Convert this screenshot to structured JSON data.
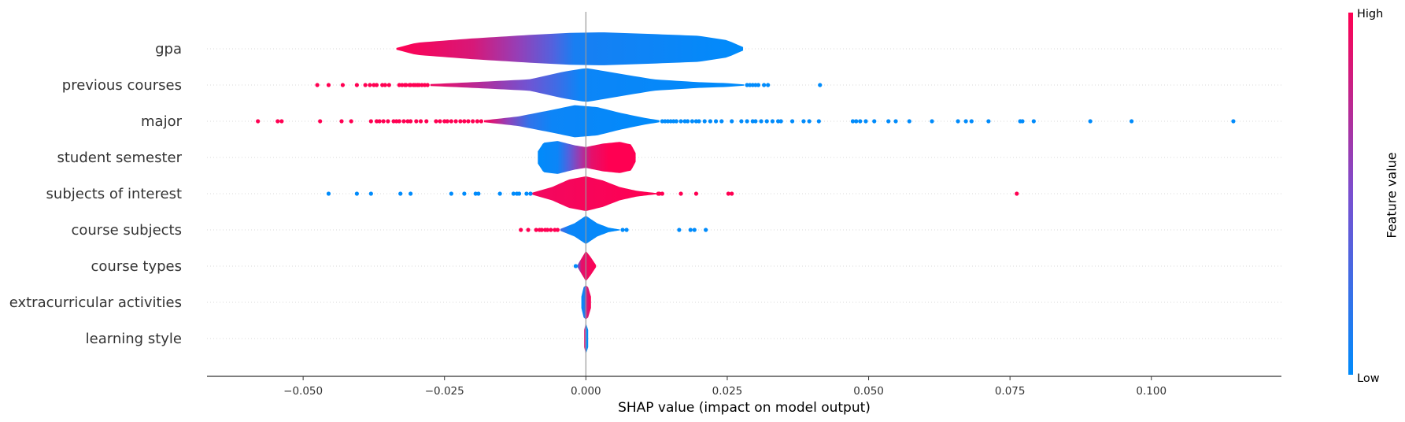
{
  "chart_data": {
    "type": "violin",
    "xlabel": "SHAP value (impact on model output)",
    "xlim": [
      -0.067,
      0.123
    ],
    "xticks": [
      -0.05,
      -0.025,
      0.0,
      0.025,
      0.05,
      0.075,
      0.1
    ],
    "xtick_labels": [
      "−0.050",
      "−0.025",
      "0.000",
      "0.025",
      "0.050",
      "0.075",
      "0.100"
    ],
    "colorbar": {
      "label": "Feature value",
      "high_label": "High",
      "low_label": "Low",
      "low_color": "#008bfb",
      "mid_color": "#7a4fd0",
      "high_color": "#ff0052"
    },
    "grid": false,
    "features": [
      {
        "name": "gpa",
        "min": -0.0335,
        "max": 0.0278,
        "width": 0.55,
        "profile": [
          [
            -0.0335,
            0.05
          ],
          [
            -0.03,
            0.35
          ],
          [
            -0.02,
            0.6
          ],
          [
            -0.01,
            0.8
          ],
          [
            -0.003,
            0.92
          ],
          [
            0.003,
            0.95
          ],
          [
            0.012,
            0.85
          ],
          [
            0.02,
            0.75
          ],
          [
            0.025,
            0.5
          ],
          [
            0.0278,
            0.1
          ]
        ],
        "colors": [
          [
            -0.0335,
            1
          ],
          [
            -0.02,
            0.85
          ],
          [
            -0.012,
            0.6
          ],
          [
            -0.006,
            0.35
          ],
          [
            -0.002,
            0.1
          ],
          [
            0.0278,
            0
          ]
        ],
        "dots": []
      },
      {
        "name": "previous courses",
        "min": -0.0275,
        "max": 0.028,
        "width": 0.6,
        "profile": [
          [
            -0.0275,
            0.05
          ],
          [
            -0.02,
            0.15
          ],
          [
            -0.01,
            0.3
          ],
          [
            -0.004,
            0.7
          ],
          [
            0.0,
            0.9
          ],
          [
            0.006,
            0.6
          ],
          [
            0.012,
            0.3
          ],
          [
            0.02,
            0.15
          ],
          [
            0.025,
            0.1
          ],
          [
            0.028,
            0.03
          ]
        ],
        "colors": [
          [
            -0.0275,
            0.95
          ],
          [
            -0.018,
            0.7
          ],
          [
            -0.01,
            0.45
          ],
          [
            -0.005,
            0.25
          ],
          [
            -0.001,
            0.05
          ],
          [
            0.028,
            0
          ]
        ],
        "dots": [
          [
            -0.0475,
            1
          ],
          [
            -0.0455,
            1
          ],
          [
            -0.043,
            1
          ],
          [
            -0.0405,
            1
          ],
          [
            -0.039,
            1
          ],
          [
            -0.0382,
            1
          ],
          [
            -0.0375,
            1
          ],
          [
            -0.037,
            1
          ],
          [
            -0.036,
            1
          ],
          [
            -0.0355,
            1
          ],
          [
            -0.0348,
            1
          ],
          [
            -0.033,
            1
          ],
          [
            -0.0325,
            1
          ],
          [
            -0.032,
            1
          ],
          [
            -0.0318,
            1
          ],
          [
            -0.0312,
            1
          ],
          [
            -0.031,
            1
          ],
          [
            -0.0305,
            1
          ],
          [
            -0.0302,
            1
          ],
          [
            -0.0298,
            1
          ],
          [
            -0.0295,
            1
          ],
          [
            -0.029,
            1
          ],
          [
            -0.0285,
            1
          ],
          [
            -0.028,
            1
          ],
          [
            0.0285,
            0
          ],
          [
            0.029,
            0
          ],
          [
            0.0295,
            0
          ],
          [
            0.03,
            0
          ],
          [
            0.0305,
            0
          ],
          [
            0.0315,
            0
          ],
          [
            0.0322,
            0
          ],
          [
            0.0414,
            0
          ]
        ]
      },
      {
        "name": "major",
        "min": -0.018,
        "max": 0.013,
        "width": 0.6,
        "profile": [
          [
            -0.018,
            0.05
          ],
          [
            -0.012,
            0.25
          ],
          [
            -0.006,
            0.6
          ],
          [
            -0.002,
            0.85
          ],
          [
            0.002,
            0.75
          ],
          [
            0.006,
            0.45
          ],
          [
            0.01,
            0.2
          ],
          [
            0.013,
            0.05
          ]
        ],
        "colors": [
          [
            -0.018,
            1
          ],
          [
            -0.014,
            0.6
          ],
          [
            -0.01,
            0.2
          ],
          [
            -0.006,
            0.05
          ],
          [
            0.013,
            0
          ]
        ],
        "dots": [
          [
            -0.058,
            1
          ],
          [
            -0.0545,
            1
          ],
          [
            -0.0538,
            1
          ],
          [
            -0.047,
            1
          ],
          [
            -0.0432,
            1
          ],
          [
            -0.0415,
            1
          ],
          [
            -0.038,
            1
          ],
          [
            -0.037,
            1
          ],
          [
            -0.0365,
            1
          ],
          [
            -0.0358,
            1
          ],
          [
            -0.035,
            1
          ],
          [
            -0.034,
            1
          ],
          [
            -0.0335,
            1
          ],
          [
            -0.033,
            1
          ],
          [
            -0.0322,
            1
          ],
          [
            -0.0315,
            1
          ],
          [
            -0.031,
            1
          ],
          [
            -0.03,
            1
          ],
          [
            -0.0292,
            1
          ],
          [
            -0.0282,
            1
          ],
          [
            -0.0265,
            1
          ],
          [
            -0.0258,
            1
          ],
          [
            -0.025,
            1
          ],
          [
            -0.0245,
            1
          ],
          [
            -0.0238,
            1
          ],
          [
            -0.023,
            1
          ],
          [
            -0.0222,
            1
          ],
          [
            -0.0215,
            1
          ],
          [
            -0.0208,
            1
          ],
          [
            -0.02,
            1
          ],
          [
            -0.0192,
            1
          ],
          [
            -0.0185,
            1
          ],
          [
            0.0135,
            0
          ],
          [
            0.014,
            0
          ],
          [
            0.0145,
            0
          ],
          [
            0.015,
            0
          ],
          [
            0.0155,
            0
          ],
          [
            0.016,
            0
          ],
          [
            0.0168,
            0
          ],
          [
            0.0175,
            0
          ],
          [
            0.018,
            0
          ],
          [
            0.0188,
            0
          ],
          [
            0.0195,
            0
          ],
          [
            0.02,
            0
          ],
          [
            0.021,
            0
          ],
          [
            0.022,
            0
          ],
          [
            0.023,
            0
          ],
          [
            0.024,
            0
          ],
          [
            0.0258,
            0
          ],
          [
            0.0275,
            0
          ],
          [
            0.0285,
            0
          ],
          [
            0.0295,
            0
          ],
          [
            0.03,
            0
          ],
          [
            0.031,
            0
          ],
          [
            0.032,
            0
          ],
          [
            0.033,
            0
          ],
          [
            0.034,
            0
          ],
          [
            0.0345,
            0
          ],
          [
            0.0365,
            0
          ],
          [
            0.0385,
            0
          ],
          [
            0.0395,
            0
          ],
          [
            0.0412,
            0
          ],
          [
            0.0472,
            0
          ],
          [
            0.0478,
            0
          ],
          [
            0.0485,
            0
          ],
          [
            0.0495,
            0
          ],
          [
            0.051,
            0
          ],
          [
            0.0535,
            0
          ],
          [
            0.0548,
            0
          ],
          [
            0.0572,
            0
          ],
          [
            0.0612,
            0
          ],
          [
            0.0658,
            0
          ],
          [
            0.0672,
            0
          ],
          [
            0.0682,
            0
          ],
          [
            0.0712,
            0
          ],
          [
            0.0768,
            0
          ],
          [
            0.0772,
            0
          ],
          [
            0.0792,
            0
          ],
          [
            0.0892,
            0
          ],
          [
            0.0965,
            0
          ],
          [
            0.1145,
            0
          ]
        ]
      },
      {
        "name": "student semester",
        "min": -0.0085,
        "max": 0.0088,
        "width": 0.55,
        "profile": [
          [
            -0.0085,
            0.35
          ],
          [
            -0.0075,
            0.85
          ],
          [
            -0.005,
            0.95
          ],
          [
            -0.002,
            0.7
          ],
          [
            0.0,
            0.6
          ],
          [
            0.003,
            0.8
          ],
          [
            0.006,
            0.9
          ],
          [
            0.008,
            0.75
          ],
          [
            0.0088,
            0.25
          ]
        ],
        "colors": [
          [
            -0.0085,
            0
          ],
          [
            -0.005,
            0.05
          ],
          [
            -0.003,
            0.35
          ],
          [
            -0.001,
            0.65
          ],
          [
            0.001,
            0.9
          ],
          [
            0.004,
            1
          ],
          [
            0.0088,
            1
          ]
        ],
        "dots": []
      },
      {
        "name": "subjects of interest",
        "min": -0.0095,
        "max": 0.0125,
        "width": 0.6,
        "profile": [
          [
            -0.0095,
            0.05
          ],
          [
            -0.006,
            0.35
          ],
          [
            -0.003,
            0.75
          ],
          [
            0.0,
            0.92
          ],
          [
            0.003,
            0.7
          ],
          [
            0.006,
            0.35
          ],
          [
            0.009,
            0.15
          ],
          [
            0.0125,
            0.03
          ]
        ],
        "colors": [
          [
            -0.0095,
            0.95
          ],
          [
            0.0125,
            1
          ]
        ],
        "dots": [
          [
            -0.0455,
            0
          ],
          [
            -0.0405,
            0
          ],
          [
            -0.038,
            0
          ],
          [
            -0.0328,
            0
          ],
          [
            -0.031,
            0
          ],
          [
            -0.0238,
            0
          ],
          [
            -0.0215,
            0
          ],
          [
            -0.0195,
            0
          ],
          [
            -0.019,
            0
          ],
          [
            -0.0152,
            0
          ],
          [
            -0.0128,
            0
          ],
          [
            -0.0122,
            0
          ],
          [
            -0.0118,
            0
          ],
          [
            -0.0105,
            0
          ],
          [
            -0.0098,
            0
          ],
          [
            0.0128,
            1
          ],
          [
            0.013,
            1
          ],
          [
            0.0135,
            1
          ],
          [
            0.0168,
            1
          ],
          [
            0.0195,
            1
          ],
          [
            0.0252,
            1
          ],
          [
            0.0258,
            1
          ],
          [
            0.0762,
            1
          ]
        ]
      },
      {
        "name": "course subjects",
        "min": -0.0045,
        "max": 0.006,
        "width": 0.6,
        "profile": [
          [
            -0.0045,
            0.05
          ],
          [
            -0.002,
            0.35
          ],
          [
            0.0,
            0.75
          ],
          [
            0.002,
            0.35
          ],
          [
            0.004,
            0.12
          ],
          [
            0.006,
            0.02
          ]
        ],
        "colors": [
          [
            -0.0045,
            0.3
          ],
          [
            -0.003,
            0.05
          ],
          [
            0.006,
            0
          ]
        ],
        "dots": [
          [
            -0.0115,
            1
          ],
          [
            -0.0102,
            1
          ],
          [
            -0.0088,
            1
          ],
          [
            -0.0082,
            1
          ],
          [
            -0.0078,
            1
          ],
          [
            -0.0072,
            1
          ],
          [
            -0.0068,
            1
          ],
          [
            -0.0062,
            1
          ],
          [
            -0.0055,
            1
          ],
          [
            -0.005,
            1
          ],
          [
            0.0065,
            0
          ],
          [
            0.0072,
            0
          ],
          [
            0.0165,
            0
          ],
          [
            0.0185,
            0
          ],
          [
            0.0192,
            0
          ],
          [
            0.0212,
            0
          ]
        ]
      },
      {
        "name": "course types",
        "min": -0.0015,
        "max": 0.0018,
        "width": 0.6,
        "profile": [
          [
            -0.0015,
            0.05
          ],
          [
            -0.0008,
            0.4
          ],
          [
            0.0,
            0.8
          ],
          [
            0.0008,
            0.5
          ],
          [
            0.0018,
            0.05
          ]
        ],
        "colors": [
          [
            -0.0015,
            0.3
          ],
          [
            -0.0008,
            0.9
          ],
          [
            0.0018,
            1
          ]
        ],
        "dots": [
          [
            -0.0018,
            0
          ]
        ]
      },
      {
        "name": "extracurricular activities",
        "min": -0.0008,
        "max": 0.0009,
        "width": 0.6,
        "profile": [
          [
            -0.0008,
            0.3
          ],
          [
            -0.0004,
            0.8
          ],
          [
            0.0,
            0.9
          ],
          [
            0.0004,
            0.8
          ],
          [
            0.0009,
            0.3
          ]
        ],
        "colors": [
          [
            -0.0008,
            0
          ],
          [
            -0.0003,
            0.1
          ],
          [
            0.0001,
            0.8
          ],
          [
            0.0009,
            1
          ]
        ],
        "dots": []
      },
      {
        "name": "learning style",
        "min": -0.0003,
        "max": 0.0004,
        "width": 0.55,
        "profile": [
          [
            -0.0003,
            0.5
          ],
          [
            0.0,
            0.9
          ],
          [
            0.0004,
            0.5
          ]
        ],
        "colors": [
          [
            -0.0003,
            1
          ],
          [
            -0.0001,
            0.5
          ],
          [
            0.0001,
            0
          ],
          [
            0.0004,
            0
          ]
        ],
        "dots": []
      }
    ]
  }
}
